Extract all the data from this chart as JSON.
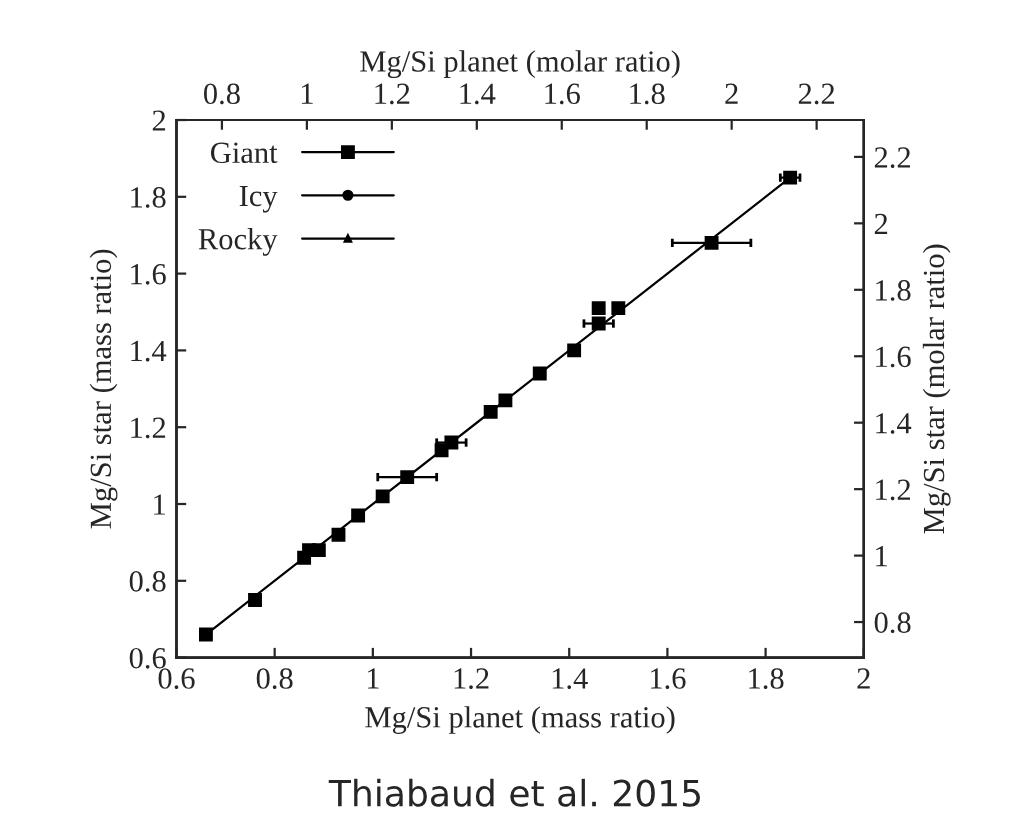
{
  "chart_data": {
    "type": "scatter",
    "xlabel": "Mg/Si planet (mass ratio)",
    "ylabel": "Mg/Si star (mass ratio)",
    "x2label": "Mg/Si planet (molar ratio)",
    "y2label": "Mg/Si star (molar ratio)",
    "annotations": [
      "Thiabaud et al. 2015"
    ],
    "xlim": [
      0.6,
      2
    ],
    "xticks": [
      0.6,
      0.8,
      1,
      1.2,
      1.4,
      1.6,
      1.8,
      2
    ],
    "ylim": [
      0.6,
      2
    ],
    "yticks": [
      0.6,
      0.8,
      1,
      1.2,
      1.4,
      1.6,
      1.8,
      2
    ],
    "x2lim": [
      0.693,
      2.311
    ],
    "x2ticks": [
      0.8,
      1,
      1.2,
      1.4,
      1.6,
      1.8,
      2,
      2.2
    ],
    "y2lim": [
      0.693,
      2.311
    ],
    "y2ticks": [
      0.8,
      1,
      1.2,
      1.4,
      1.6,
      1.8,
      2,
      2.2
    ],
    "legend": "top left",
    "grid": false,
    "series": [
      {
        "name": "Giant",
        "color": "#000000",
        "marker": "square",
        "x": [
          0.66,
          0.76,
          0.86,
          0.87,
          0.89,
          0.93,
          0.97,
          1.02,
          1.07,
          1.14,
          1.16,
          1.24,
          1.27,
          1.34,
          1.41,
          1.46,
          1.46,
          1.5,
          1.69,
          1.85
        ],
        "values": [
          0.66,
          0.75,
          0.86,
          0.88,
          0.88,
          0.92,
          0.97,
          1.02,
          1.07,
          1.14,
          1.16,
          1.24,
          1.27,
          1.34,
          1.4,
          1.47,
          1.51,
          1.51,
          1.68,
          1.85
        ],
        "xerrors": [
          null,
          null,
          null,
          null,
          null,
          null,
          null,
          null,
          0.06,
          null,
          0.03,
          null,
          null,
          null,
          null,
          0.03,
          null,
          0.01,
          0.08,
          0.02
        ]
      },
      {
        "name": "Icy",
        "color": "#000000",
        "marker": "circle"
      },
      {
        "name": "Rocky",
        "color": "#000000",
        "marker": "triangle"
      },
      {
        "type": "line",
        "color": "#000000",
        "marker": "none",
        "line_style": "solid",
        "x": [
          0.66,
          1.85
        ],
        "values": [
          0.66,
          1.85
        ]
      }
    ]
  }
}
